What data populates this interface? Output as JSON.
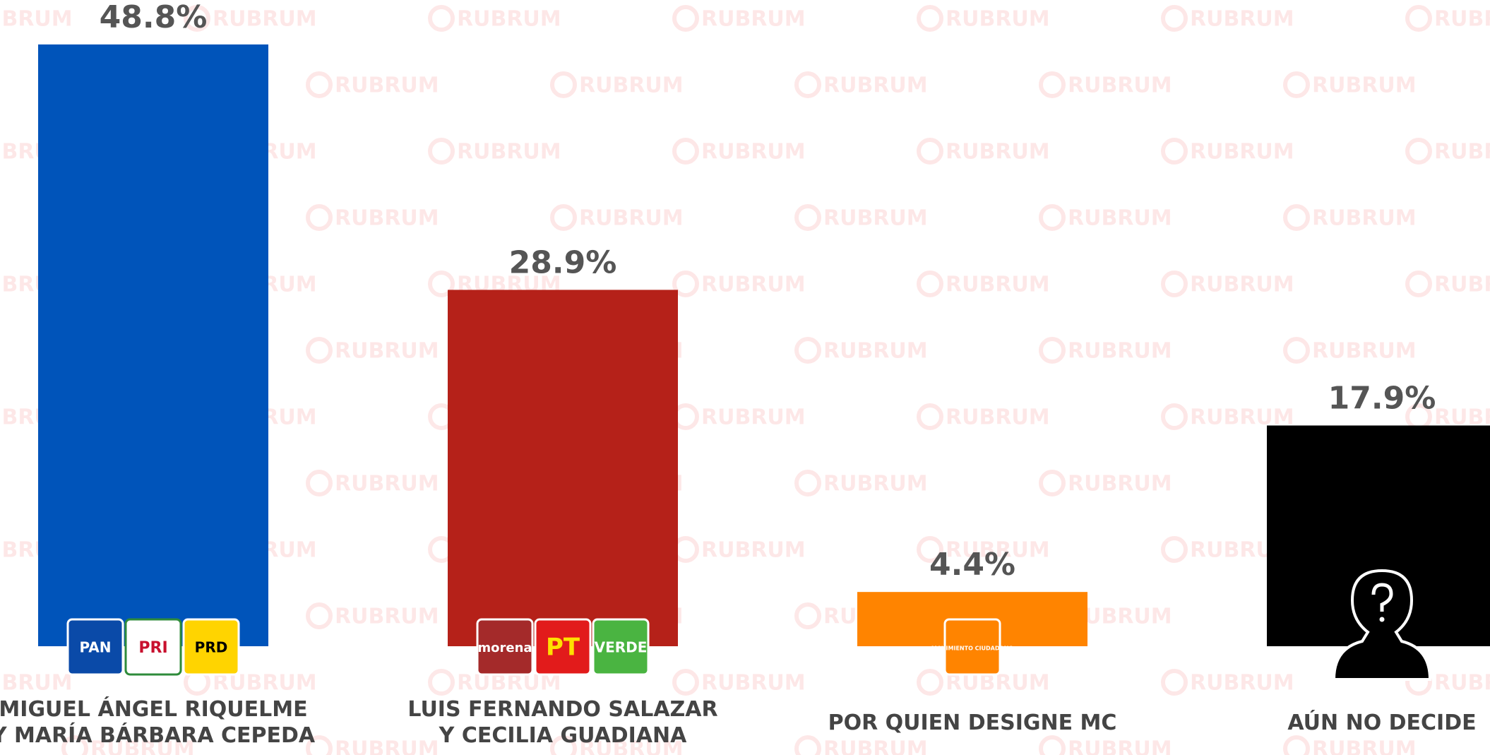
{
  "chart_data": {
    "type": "bar",
    "categories": [
      "MIGUEL ÁNGEL RIQUELME Y MARÍA BÁRBARA CEPEDA",
      "LUIS FERNANDO SALAZAR Y CECILIA GUADIANA",
      "POR QUIEN DESIGNE MC",
      "AÚN NO DECIDE"
    ],
    "values": [
      48.8,
      28.9,
      4.4,
      17.9
    ],
    "value_labels": [
      "48.8%",
      "28.9%",
      "4.4%",
      "17.9%"
    ],
    "colors": [
      "#0054ba",
      "#b52119",
      "#ff8400",
      "#000000"
    ],
    "logos": [
      [
        "PAN",
        "PRI",
        "PRD"
      ],
      [
        "morena",
        "PT",
        "VERDE"
      ],
      [
        "MOVIMIENTO CIUDADANO"
      ],
      []
    ],
    "watermark": "RUBRUM"
  }
}
